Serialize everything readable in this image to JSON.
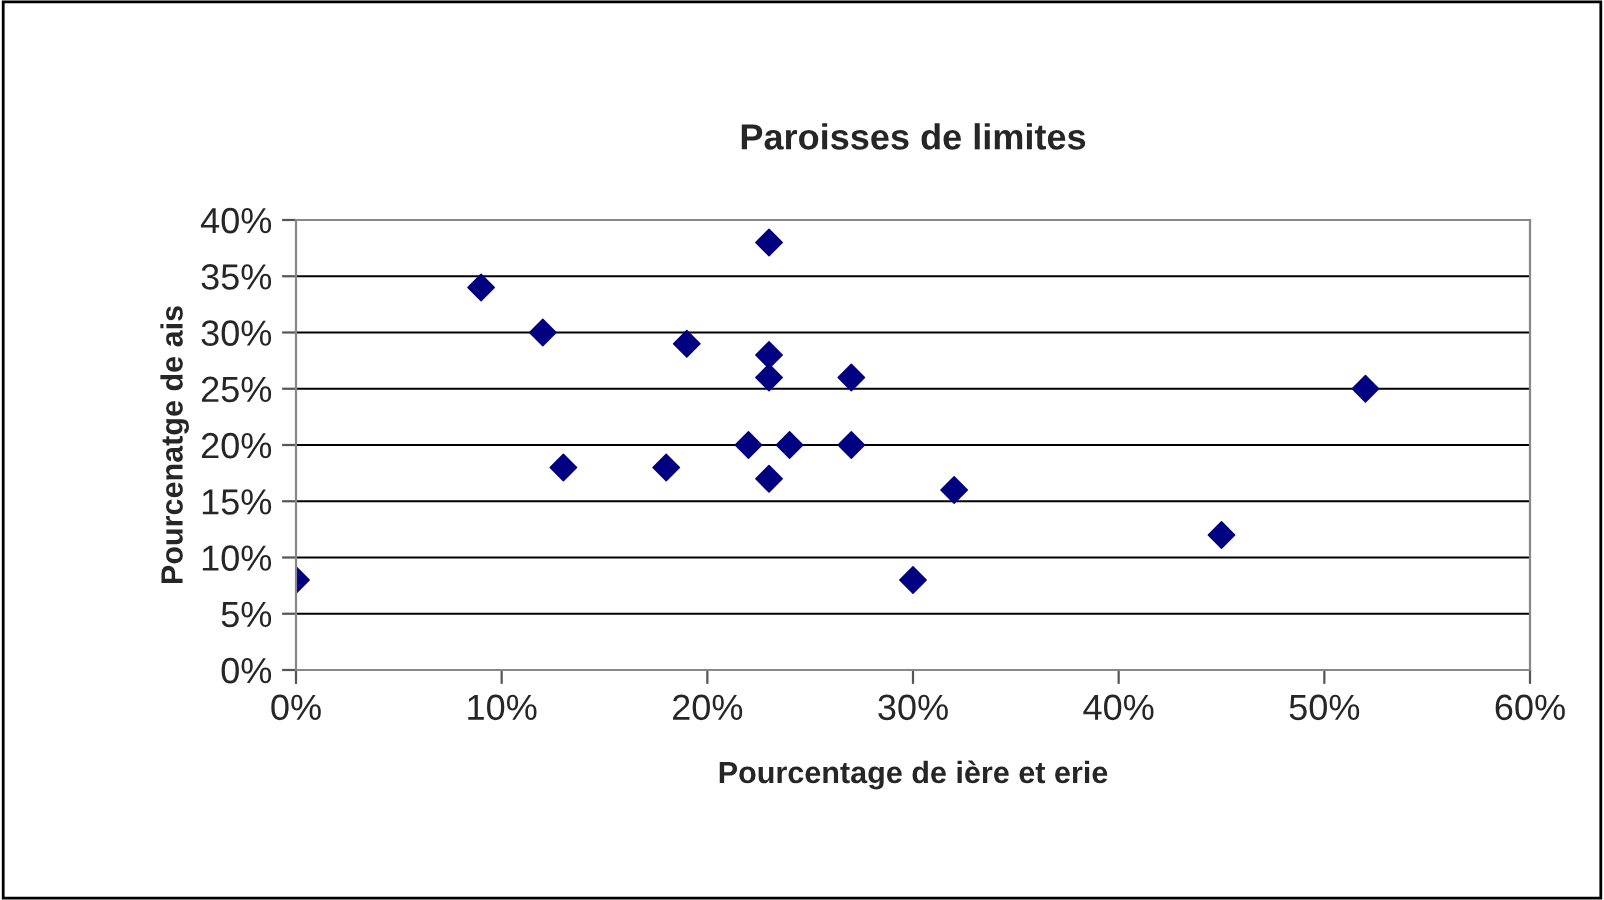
{
  "chart_data": {
    "type": "scatter",
    "title": "Paroisses de limites",
    "xlabel": "Pourcentage de ière et erie",
    "ylabel": "Pourcenatge de ais",
    "x": [
      0,
      9,
      12,
      13,
      18,
      19,
      22,
      23,
      23,
      23,
      23,
      24,
      27,
      27,
      30,
      32,
      45,
      52
    ],
    "series": [
      {
        "color": "#000080",
        "values": [
          8,
          34,
          30,
          18,
          18,
          29,
          20,
          38,
          28,
          26,
          17,
          20,
          26,
          20,
          8,
          16,
          12,
          25
        ]
      }
    ],
    "marker": "diamond",
    "grid": "y",
    "legend": false,
    "xlim": [
      0,
      60
    ],
    "xticks": [
      {
        "value": 0,
        "label": "0%"
      },
      {
        "value": 10,
        "label": "10%"
      },
      {
        "value": 20,
        "label": "20%"
      },
      {
        "value": 30,
        "label": "30%"
      },
      {
        "value": 40,
        "label": "40%"
      },
      {
        "value": 50,
        "label": "50%"
      },
      {
        "value": 60,
        "label": "60%"
      }
    ],
    "ylim": [
      0,
      40
    ],
    "yticks": [
      {
        "value": 0,
        "label": "0%"
      },
      {
        "value": 5,
        "label": "5%"
      },
      {
        "value": 10,
        "label": "10%"
      },
      {
        "value": 15,
        "label": "15%"
      },
      {
        "value": 20,
        "label": "20%"
      },
      {
        "value": 25,
        "label": "25%"
      },
      {
        "value": 30,
        "label": "30%"
      },
      {
        "value": 35,
        "label": "35%"
      },
      {
        "value": 40,
        "label": "40%"
      }
    ]
  }
}
